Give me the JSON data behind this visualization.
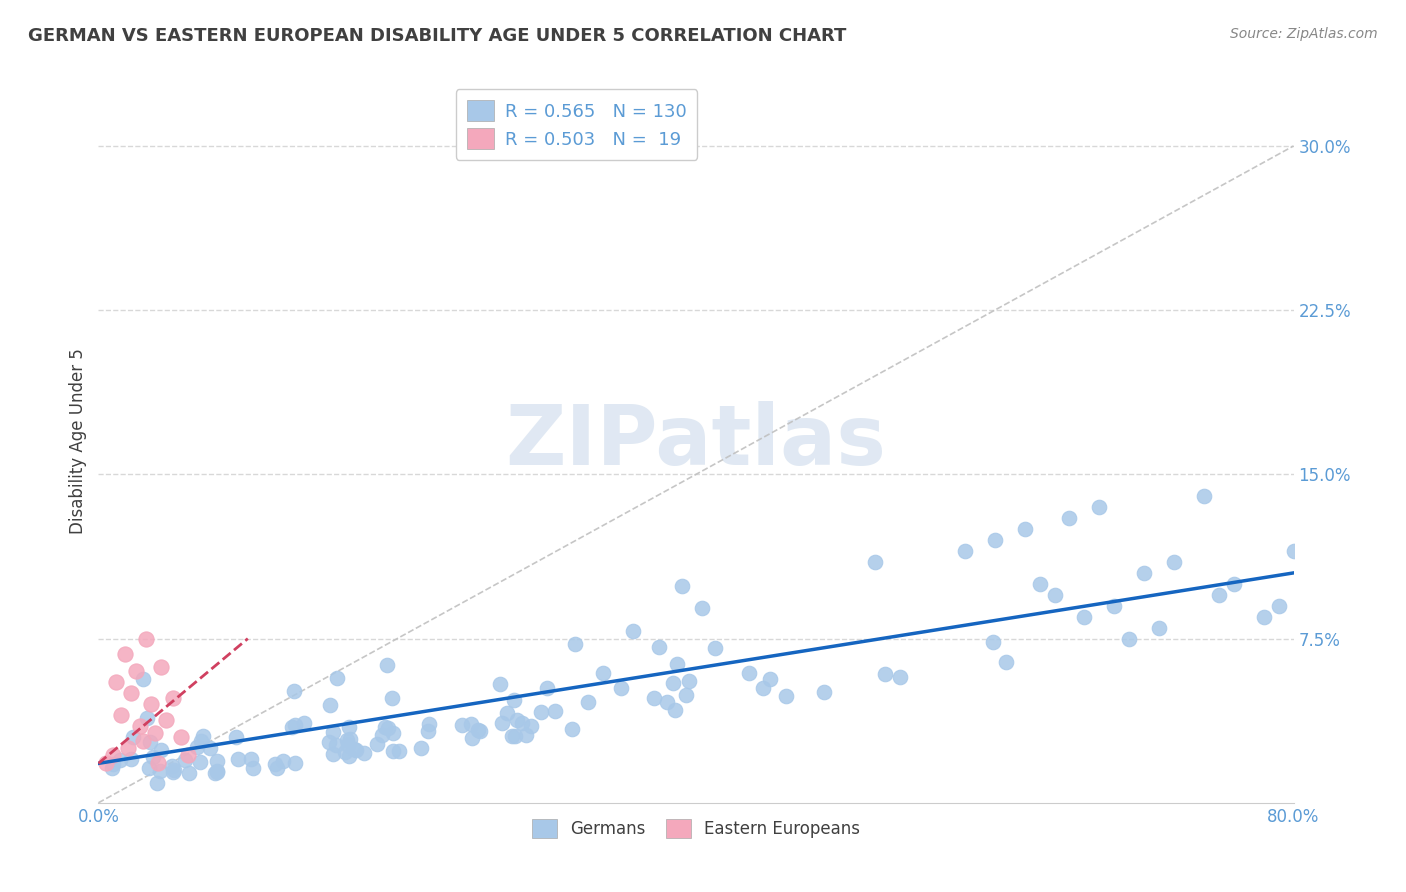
{
  "title": "GERMAN VS EASTERN EUROPEAN DISABILITY AGE UNDER 5 CORRELATION CHART",
  "source": "Source: ZipAtlas.com",
  "ylabel": "Disability Age Under 5",
  "xlim": [
    0,
    0.8
  ],
  "ylim": [
    0,
    0.33
  ],
  "ytick_vals": [
    0.075,
    0.15,
    0.225,
    0.3
  ],
  "ytick_labels": [
    "7.5%",
    "15.0%",
    "22.5%",
    "30.0%"
  ],
  "xtick_vals": [
    0.0,
    0.1,
    0.2,
    0.3,
    0.4,
    0.5,
    0.6,
    0.7,
    0.8
  ],
  "german_R": 0.565,
  "german_N": 130,
  "eastern_R": 0.503,
  "eastern_N": 19,
  "german_color": "#a8c8e8",
  "eastern_color": "#f4a8bc",
  "german_line_color": "#1565c0",
  "eastern_line_color": "#d04060",
  "ref_line_color": "#c0c0c0",
  "background_color": "#ffffff",
  "grid_color": "#d8d8d8",
  "watermark_color": "#ccdaeb",
  "axis_tick_color": "#5b9bd5",
  "title_color": "#404040",
  "legend_text_color": "#5b9bd5",
  "source_color": "#888888"
}
